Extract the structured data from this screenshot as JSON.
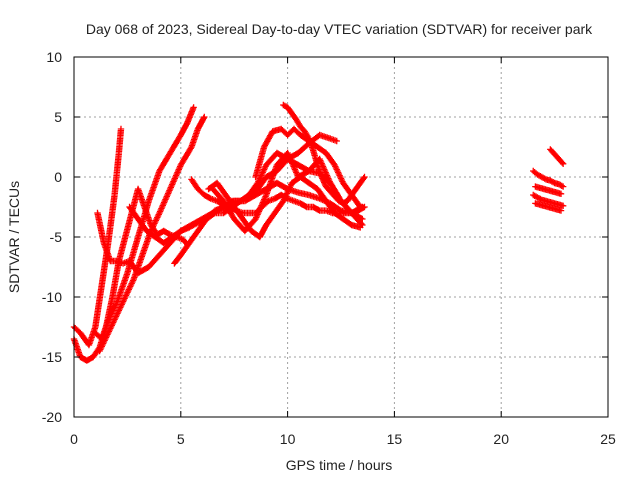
{
  "chart_data": {
    "type": "scatter",
    "title": "Day 068 of 2023, Sidereal Day-to-day VTEC variation (SDTVAR) for receiver park",
    "xlabel": "GPS time / hours",
    "ylabel": "SDTVAR / TECUs",
    "xlim": [
      0,
      25
    ],
    "ylim": [
      -20,
      10
    ],
    "xticks": [
      0,
      5,
      10,
      15,
      20,
      25
    ],
    "yticks": [
      -20,
      -15,
      -10,
      -5,
      0,
      5,
      10
    ],
    "grid": true,
    "marker": "plus",
    "color": "#ff0000",
    "series": [
      {
        "x": [
          0.0,
          0.3,
          0.6,
          0.9,
          1.2,
          1.5,
          1.8,
          2.1,
          2.4,
          2.7,
          3.0,
          3.3,
          3.6,
          3.9,
          4.2,
          4.5,
          4.8,
          5.1,
          5.3
        ],
        "y": [
          -13.5,
          -15.0,
          -15.3,
          -15.0,
          -14.2,
          -12.5,
          -10.0,
          -7.0,
          -5.0,
          -3.0,
          -1.0,
          -2.5,
          -4.0,
          -4.8,
          -4.5,
          -4.8,
          -5.0,
          -5.2,
          -5.6
        ]
      },
      {
        "x": [
          0.0,
          0.3,
          0.7,
          1.0,
          1.3,
          1.6,
          1.9,
          2.1,
          2.2
        ],
        "y": [
          -12.5,
          -13.0,
          -14.0,
          -12.5,
          -9.0,
          -5.5,
          -1.5,
          2.0,
          4.0
        ]
      },
      {
        "x": [
          1.0,
          1.3,
          1.6,
          2.0,
          2.5,
          3.0,
          3.5,
          4.0,
          4.5,
          5.0,
          5.3,
          5.6
        ],
        "y": [
          -13.0,
          -13.5,
          -12.0,
          -10.5,
          -8.0,
          -5.0,
          -2.0,
          0.5,
          2.0,
          3.5,
          4.5,
          5.8
        ]
      },
      {
        "x": [
          1.2,
          1.6,
          2.0,
          2.4,
          2.8,
          3.2,
          3.6,
          4.0,
          4.5,
          5.0,
          5.5,
          5.8,
          6.1
        ],
        "y": [
          -14.5,
          -13.0,
          -11.5,
          -10.0,
          -8.5,
          -6.5,
          -4.5,
          -3.0,
          -1.0,
          1.0,
          2.5,
          4.0,
          5.0
        ]
      },
      {
        "x": [
          1.1,
          1.4,
          1.7,
          2.0,
          2.3,
          2.6,
          3.0,
          3.5,
          4.0,
          4.5,
          5.0,
          5.5,
          6.0,
          6.5,
          7.0,
          7.5,
          8.0,
          8.5,
          9.0,
          9.5,
          10.0,
          10.5,
          11.0,
          11.5,
          12.0,
          12.5,
          13.0,
          13.5
        ],
        "y": [
          -3.0,
          -5.5,
          -7.0,
          -7.0,
          -7.2,
          -7.0,
          -8.0,
          -7.5,
          -6.5,
          -5.5,
          -4.5,
          -4.0,
          -3.5,
          -3.0,
          -2.5,
          -2.0,
          -2.0,
          -1.5,
          -1.0,
          -0.5,
          -1.0,
          -1.3,
          -1.5,
          -1.8,
          -2.2,
          -2.8,
          -3.0,
          -3.5
        ]
      },
      {
        "x": [
          2.6,
          3.0,
          3.4,
          3.8,
          4.2,
          4.6,
          5.0,
          5.4,
          5.8,
          6.2,
          6.6,
          7.0,
          7.4,
          7.8,
          8.2,
          8.6,
          9.0,
          9.5,
          10.0,
          10.5,
          11.0,
          11.5,
          12.0,
          12.5,
          13.0,
          13.5
        ],
        "y": [
          -2.5,
          -3.5,
          -4.5,
          -5.0,
          -5.5,
          -5.0,
          -4.5,
          -4.2,
          -3.8,
          -3.5,
          -3.0,
          -3.0,
          -2.5,
          -2.0,
          -1.5,
          -1.0,
          0.0,
          0.5,
          1.5,
          1.0,
          0.5,
          0.3,
          -0.5,
          -2.0,
          -3.0,
          -4.0
        ]
      },
      {
        "x": [
          4.7,
          5.0,
          5.4,
          5.8,
          6.2,
          6.6,
          7.0,
          7.4,
          7.8,
          8.2,
          8.6,
          9.0,
          9.5,
          10.0,
          10.5,
          11.0,
          11.5,
          12.0,
          12.3
        ],
        "y": [
          -7.2,
          -6.5,
          -5.5,
          -4.5,
          -3.5,
          -2.8,
          -2.5,
          -2.0,
          -2.0,
          -1.5,
          -0.5,
          1.0,
          2.0,
          1.5,
          2.0,
          2.8,
          3.5,
          3.2,
          3.0
        ]
      },
      {
        "x": [
          5.5,
          5.8,
          6.1,
          6.4,
          6.7,
          7.0,
          7.3,
          7.6,
          7.9,
          8.2,
          8.5,
          8.8,
          9.1,
          9.4,
          9.7,
          10.0,
          10.3,
          10.6,
          10.9,
          11.2,
          11.5,
          11.8,
          12.1,
          12.4,
          12.7,
          13.0,
          13.3,
          13.6
        ],
        "y": [
          -0.2,
          -1.0,
          -1.5,
          -1.8,
          -2.0,
          -2.3,
          -2.5,
          -2.8,
          -3.0,
          -3.0,
          -3.0,
          -2.5,
          -2.0,
          -1.8,
          -1.5,
          -1.8,
          -2.0,
          -2.2,
          -2.5,
          -2.5,
          -2.8,
          -2.8,
          -3.0,
          -3.0,
          -3.0,
          -3.0,
          -2.8,
          -2.5
        ]
      },
      {
        "x": [
          6.3,
          6.7,
          7.1,
          7.5,
          7.9,
          8.3,
          8.7,
          9.0,
          9.4,
          9.8,
          10.2,
          10.6,
          11.0,
          11.4,
          11.8,
          12.2,
          12.6,
          13.0,
          13.4
        ],
        "y": [
          -1.0,
          -0.5,
          -1.5,
          -2.5,
          -3.5,
          -4.5,
          -5.0,
          -4.0,
          -3.0,
          -2.0,
          -0.5,
          0.0,
          -0.5,
          -1.0,
          -2.0,
          -3.0,
          -3.5,
          -4.0,
          -4.2
        ]
      },
      {
        "x": [
          6.5,
          7.0,
          7.5,
          8.0,
          8.5,
          9.0,
          9.5,
          10.0,
          10.5,
          11.0,
          11.5,
          12.0,
          12.5,
          13.0,
          13.5
        ],
        "y": [
          -1.0,
          -2.0,
          -3.5,
          -4.5,
          -3.5,
          -1.5,
          1.0,
          2.0,
          0.0,
          0.5,
          1.5,
          -0.5,
          -2.0,
          -3.0,
          -2.5
        ]
      },
      {
        "x": [
          8.5,
          8.9,
          9.3,
          9.7,
          10.0,
          10.3,
          10.6,
          11.0,
          11.4,
          11.8,
          12.2,
          12.6,
          13.0,
          13.4
        ],
        "y": [
          0.0,
          2.5,
          3.8,
          4.0,
          3.5,
          4.0,
          3.5,
          3.0,
          2.5,
          2.0,
          1.0,
          -0.5,
          -1.5,
          -2.5
        ]
      },
      {
        "x": [
          9.8,
          10.0,
          10.2,
          10.4,
          10.6,
          10.8,
          11.0,
          11.2,
          11.4,
          11.6,
          11.8,
          12.0,
          12.2,
          12.4,
          12.6,
          12.8,
          13.0,
          13.2,
          13.4,
          13.6
        ],
        "y": [
          6.0,
          5.8,
          5.3,
          4.8,
          4.2,
          3.8,
          3.2,
          2.2,
          1.0,
          0.0,
          -0.8,
          -1.2,
          -1.6,
          -2.0,
          -2.2,
          -2.0,
          -1.5,
          -1.0,
          -0.5,
          0.0
        ]
      },
      {
        "x": [
          21.5,
          21.7,
          21.9,
          22.1,
          22.3,
          22.5,
          22.7,
          22.9
        ],
        "y": [
          0.5,
          0.2,
          0.0,
          -0.2,
          -0.3,
          -0.5,
          -0.6,
          -0.8
        ]
      },
      {
        "x": [
          21.5,
          21.7,
          21.9,
          22.1,
          22.3,
          22.5,
          22.7,
          22.9
        ],
        "y": [
          -1.5,
          -1.7,
          -1.9,
          -2.0,
          -2.1,
          -2.2,
          -2.3,
          -2.4
        ]
      },
      {
        "x": [
          21.6,
          21.8,
          22.0,
          22.2,
          22.4,
          22.6,
          22.8
        ],
        "y": [
          -2.2,
          -2.3,
          -2.4,
          -2.5,
          -2.6,
          -2.7,
          -2.8
        ]
      },
      {
        "x": [
          21.6,
          21.8,
          22.0,
          22.2,
          22.4,
          22.6,
          22.8
        ],
        "y": [
          -0.8,
          -0.9,
          -1.0,
          -1.1,
          -1.2,
          -1.3,
          -1.4
        ]
      },
      {
        "x": [
          22.3,
          22.45,
          22.6,
          22.75,
          22.9
        ],
        "y": [
          2.3,
          2.0,
          1.7,
          1.4,
          1.1
        ]
      }
    ]
  }
}
